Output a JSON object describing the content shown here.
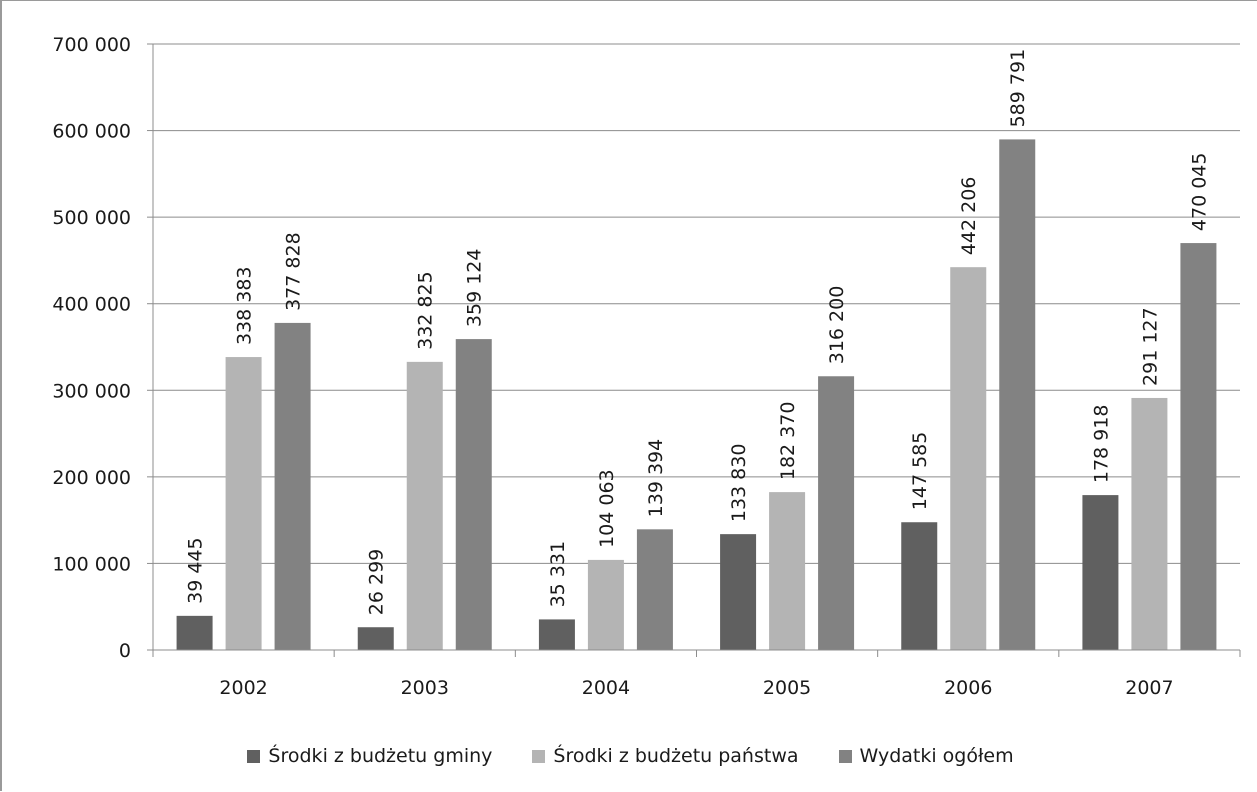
{
  "chart_data": {
    "type": "bar",
    "categories": [
      "2002",
      "2003",
      "2004",
      "2005",
      "2006",
      "2007"
    ],
    "series": [
      {
        "name": "Środki z budżetu gminy",
        "color": "#606060",
        "values": [
          39445,
          26299,
          35331,
          133830,
          147585,
          178918
        ],
        "labels": [
          "39 445",
          "26 299",
          "35 331",
          "133 830",
          "147 585",
          "178 918"
        ]
      },
      {
        "name": "Środki z budżetu państwa",
        "color": "#b4b4b4",
        "values": [
          338383,
          332825,
          104063,
          182370,
          442206,
          291127
        ],
        "labels": [
          "338 383",
          "332 825",
          "104 063",
          "182 370",
          "442 206",
          "291 127"
        ]
      },
      {
        "name": "Wydatki ogółem",
        "color": "#828282",
        "values": [
          377828,
          359124,
          139394,
          316200,
          589791,
          470045
        ],
        "labels": [
          "377 828",
          "359 124",
          "139 394",
          "316 200",
          "589 791",
          "470 045"
        ]
      }
    ],
    "yticks": [
      {
        "value": 0,
        "label": "0"
      },
      {
        "value": 100000,
        "label": "100 000"
      },
      {
        "value": 200000,
        "label": "200 000"
      },
      {
        "value": 300000,
        "label": "300 000"
      },
      {
        "value": 400000,
        "label": "400 000"
      },
      {
        "value": 500000,
        "label": "500 000"
      },
      {
        "value": 600000,
        "label": "600 000"
      },
      {
        "value": 700000,
        "label": "700 000"
      }
    ],
    "ylim": [
      0,
      700000
    ],
    "grid": true,
    "legend_position": "bottom",
    "title": "",
    "xlabel": "",
    "ylabel": ""
  }
}
